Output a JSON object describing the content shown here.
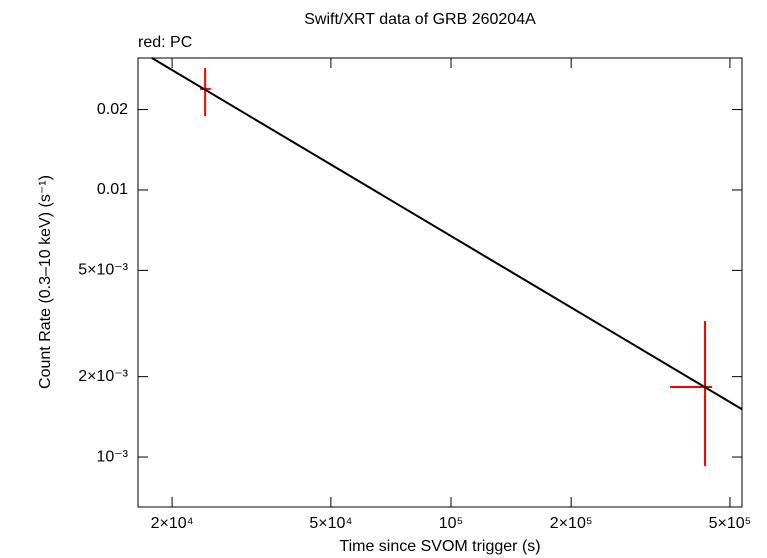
{
  "chart_data": {
    "type": "scatter",
    "title": "Swift/XRT data of GRB 260204A",
    "annotation": "red: PC",
    "x_label": "Time since SVOM trigger (s)",
    "y_label": "Count Rate (0.3–10 keV) (s⁻¹)",
    "log_x": true,
    "log_y": true,
    "xlim": [
      16430,
      536000
    ],
    "ylim": [
      0.0312,
      0.00065
    ],
    "xticks": [
      {
        "value": 20000,
        "label": "2×10⁴"
      },
      {
        "value": 50000,
        "label": "5×10⁴"
      },
      {
        "value": 100000,
        "label": "10⁵"
      },
      {
        "value": 200000,
        "label": "2×10⁵"
      },
      {
        "value": 500000,
        "label": "5×10⁵"
      }
    ],
    "yticks": [
      0.02,
      0.01,
      {
        "value": 0.005,
        "label": "5×10⁻³"
      },
      {
        "value": 0.002,
        "label": "2×10⁻³"
      },
      {
        "value": 0.001,
        "label": "10⁻³"
      }
    ],
    "series": [
      {
        "color": "#ff0000",
        "x": [
          24200,
          433000
        ],
        "x_lower": [
          23500,
          354000
        ],
        "x_upper": [
          25000,
          451000
        ],
        "values": [
          0.0239,
          0.00183
        ],
        "y_lower": [
          0.0189,
          0.000925
        ],
        "y_upper": [
          0.0286,
          0.00323
        ]
      },
      {
        "type": "line",
        "color": "#000000",
        "x": [
          17800,
          536000
        ],
        "values": [
          0.0312,
          0.00151
        ]
      }
    ]
  }
}
